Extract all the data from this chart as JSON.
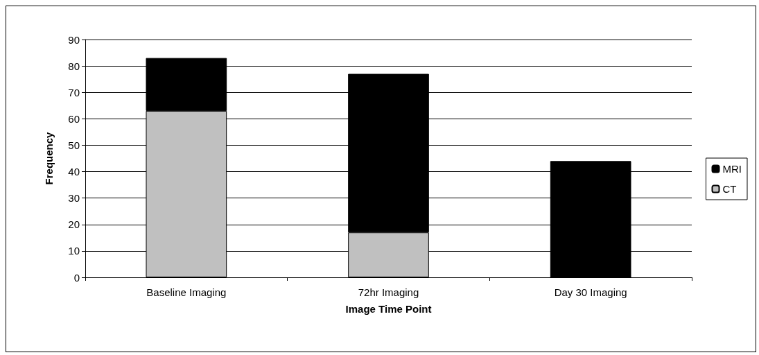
{
  "chart_data": {
    "type": "bar",
    "stacked": true,
    "xlabel": "Image Time Point",
    "ylabel": "Frequency",
    "categories": [
      "Baseline Imaging",
      "72hr Imaging",
      "Day 30 Imaging"
    ],
    "series": [
      {
        "name": "CT",
        "color": "#c0c0c0",
        "values": [
          63,
          17,
          0
        ]
      },
      {
        "name": "MRI",
        "color": "#000000",
        "values": [
          20,
          60,
          44
        ]
      }
    ],
    "ylim": [
      0,
      90
    ],
    "yticks": [
      0,
      10,
      20,
      30,
      40,
      50,
      60,
      70,
      80,
      90
    ],
    "grid": "y",
    "legend": "right"
  }
}
